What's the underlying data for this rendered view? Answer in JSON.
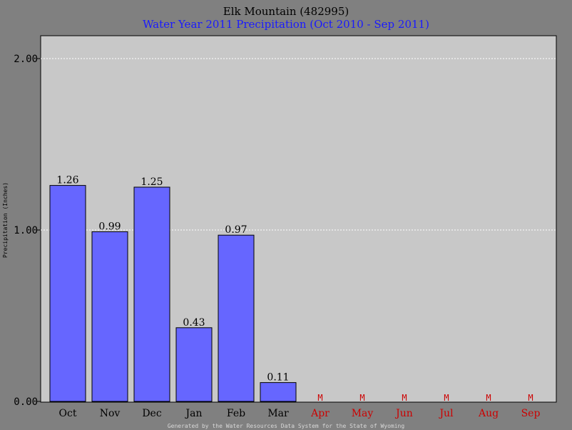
{
  "chart_data": {
    "type": "bar",
    "title": "Elk Mountain (482995)",
    "subtitle": "Water Year 2011 Precipitation (Oct 2010 - Sep 2011)",
    "ylabel": "Precipitation (Inches)",
    "xlabel": "",
    "ylim": [
      0,
      2.2
    ],
    "yticks": [
      {
        "value": 0,
        "label": "0.00"
      },
      {
        "value": 1,
        "label": "1.00"
      },
      {
        "value": 2,
        "label": "2.00"
      }
    ],
    "grid": true,
    "categories": [
      "Oct",
      "Nov",
      "Dec",
      "Jan",
      "Feb",
      "Mar",
      "Apr",
      "May",
      "Jun",
      "Jul",
      "Aug",
      "Sep"
    ],
    "values": [
      1.26,
      0.99,
      1.25,
      0.43,
      0.97,
      0.11,
      null,
      null,
      null,
      null,
      null,
      null
    ],
    "value_labels": [
      "1.26",
      "0.99",
      "1.25",
      "0.43",
      "0.97",
      "0.11",
      "M",
      "M",
      "M",
      "M",
      "M",
      "M"
    ],
    "footer": "Generated by the Water Resources Data System for the State of Wyoming",
    "colors": {
      "bar": "#6666ff",
      "bar_stroke": "#000000",
      "plot_bg": "#c8c8c8",
      "outer_bg": "#808080",
      "grid": "#ffffff",
      "missing": "#cc0000",
      "subtitle": "#1a1aff"
    }
  }
}
